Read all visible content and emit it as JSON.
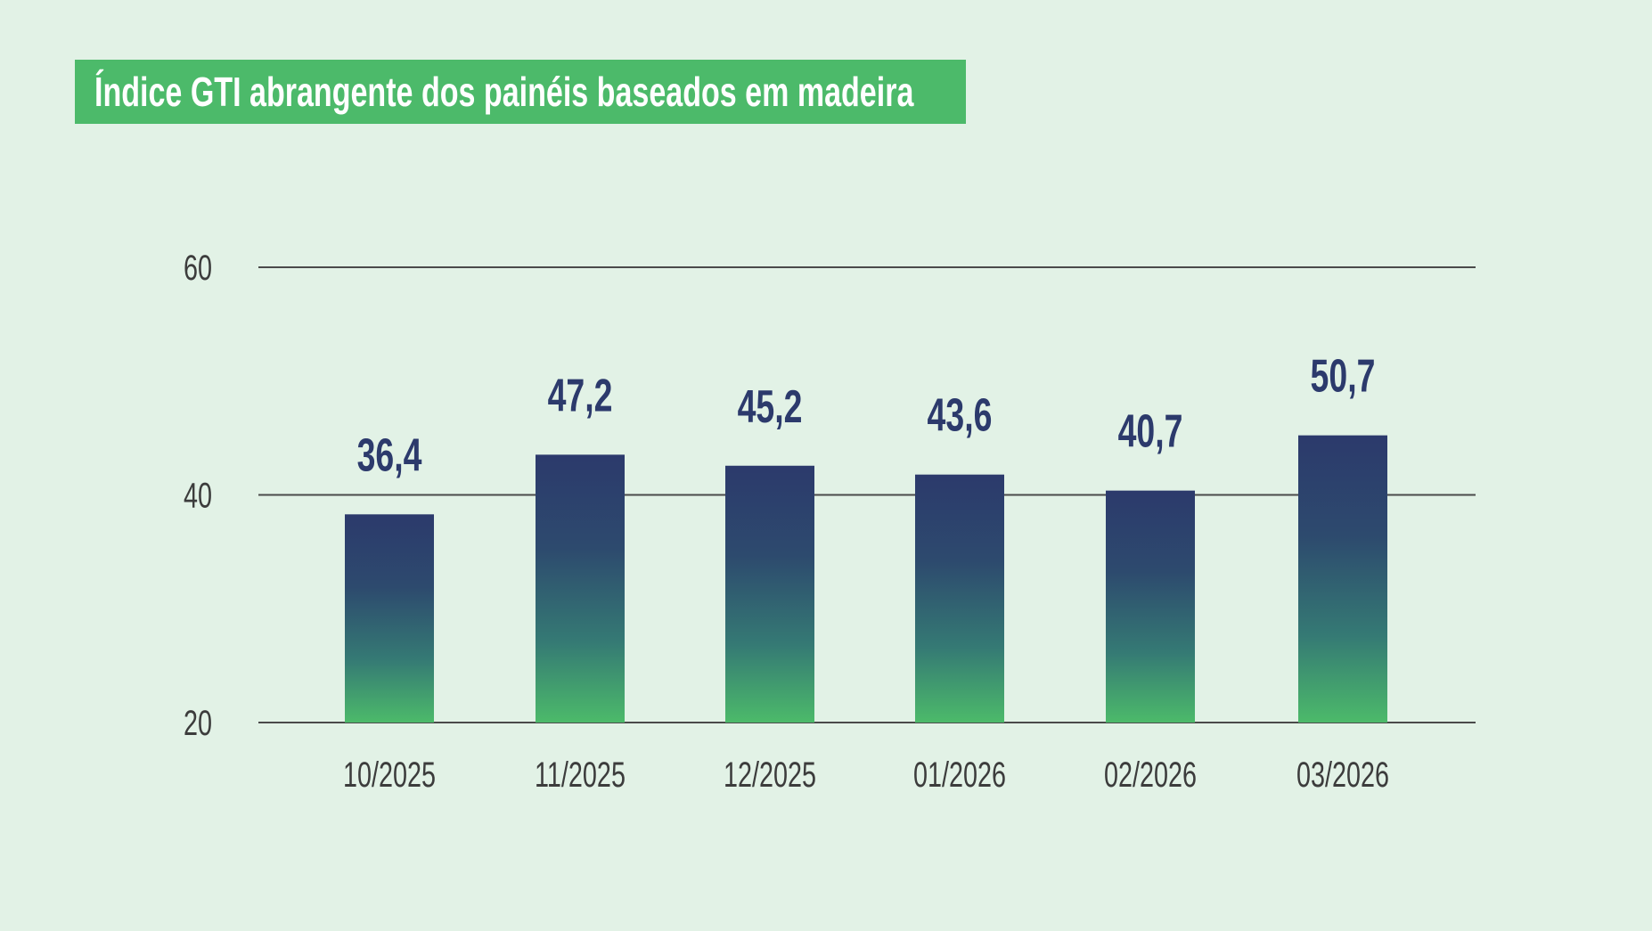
{
  "chart_data": {
    "type": "bar",
    "title": "Índice GTI abrangente dos painéis baseados em madeira",
    "categories": [
      "10/2025",
      "11/2025",
      "12/2025",
      "01/2026",
      "02/2026",
      "03/2026"
    ],
    "values": [
      36.4,
      47.2,
      45.2,
      43.6,
      40.7,
      50.7
    ],
    "data_labels": [
      "36,4",
      "47,2",
      "45,2",
      "43,6",
      "40,7",
      "50,7"
    ],
    "y_ticks": [
      {
        "value": 20,
        "label": "20"
      },
      {
        "value": 40,
        "label": "40"
      },
      {
        "value": 60,
        "label": "60"
      }
    ],
    "ylim": [
      20,
      60
    ],
    "grid": true,
    "xlabel": "",
    "ylabel": "",
    "colors": {
      "background": "#e2f2e6",
      "title_box": "#4cba6a",
      "bar_top": "#2c3a6c",
      "bar_bottom": "#4cba6a",
      "label": "#2c3a6c",
      "gridline": "#4a4a4a"
    }
  }
}
